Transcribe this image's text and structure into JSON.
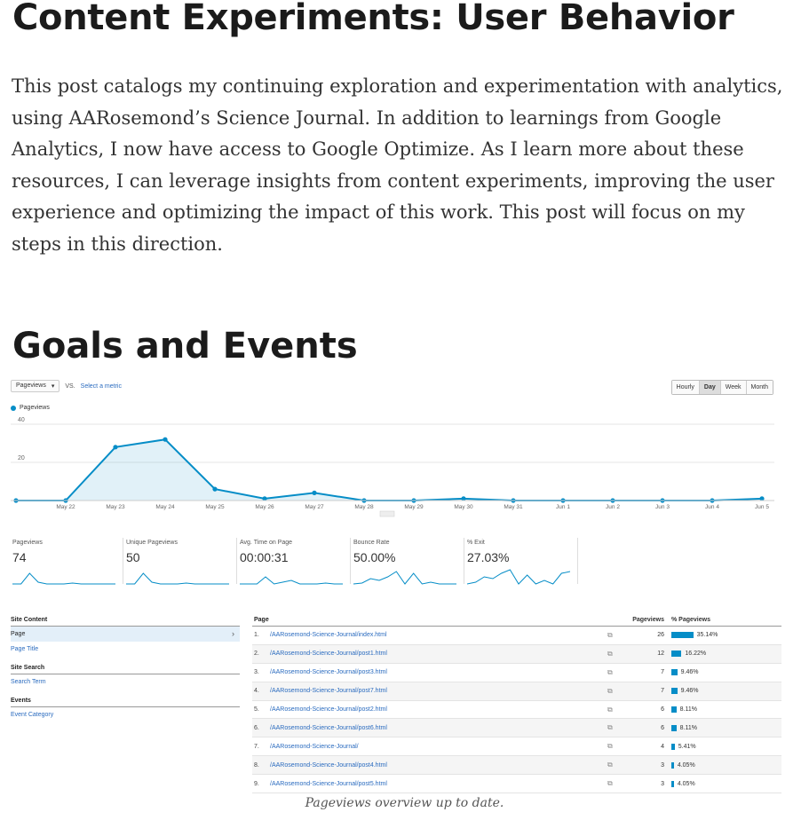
{
  "post": {
    "title": "Content Experiments: User Behavior",
    "intro": "This post catalogs my continuing exploration and experimentation with analytics, using AARosemond’s Science Journal. In addition to learnings from Google Analytics, I now have access to Google Optimize. As I learn more about these resources, I can leverage insights from content experiments, improving the user experience and optimizing the impact of this work. This post will focus on my steps in this direction.",
    "section_heading": "Goals and Events",
    "caption": "Pageviews overview up to date."
  },
  "ga": {
    "metric_select": "Pageviews",
    "vs": "VS.",
    "select_metric": "Select a metric",
    "periods": [
      "Hourly",
      "Day",
      "Week",
      "Month"
    ],
    "active_period": "Day",
    "legend": "Pageviews",
    "accent": "#058dc7",
    "chart_data": {
      "type": "area",
      "title": "",
      "xlabel": "",
      "ylabel": "",
      "x": [
        "",
        "May 22",
        "May 23",
        "May 24",
        "May 25",
        "May 26",
        "May 27",
        "May 28",
        "May 29",
        "May 30",
        "May 31",
        "Jun 1",
        "Jun 2",
        "Jun 3",
        "Jun 4",
        "Jun 5"
      ],
      "series": [
        {
          "name": "Pageviews",
          "values": [
            0,
            0,
            28,
            32,
            6,
            1,
            4,
            0,
            0,
            1,
            0,
            0,
            0,
            0,
            0,
            1
          ]
        }
      ],
      "yticks": [
        "40",
        "20"
      ],
      "ylim": [
        0,
        40
      ],
      "grid": true
    },
    "scorecards": [
      {
        "label": "Pageviews",
        "value": "74"
      },
      {
        "label": "Unique Pageviews",
        "value": "50"
      },
      {
        "label": "Avg. Time on Page",
        "value": "00:00:31"
      },
      {
        "label": "Bounce Rate",
        "value": "50.00%"
      },
      {
        "label": "% Exit",
        "value": "27.03%"
      }
    ],
    "sidebar": {
      "site_content": "Site Content",
      "page": "Page",
      "page_title": "Page Title",
      "site_search": "Site Search",
      "search_term": "Search Term",
      "events": "Events",
      "event_category": "Event Category"
    },
    "table": {
      "headers": {
        "page": "Page",
        "pageviews": "Pageviews",
        "pct": "% Pageviews"
      },
      "rows": [
        {
          "num": "1.",
          "url": "/AARosemond-Science-Journal/index.html",
          "pv": "26",
          "pct": "35.14%",
          "share": 0.3514
        },
        {
          "num": "2.",
          "url": "/AARosemond-Science-Journal/post1.html",
          "pv": "12",
          "pct": "16.22%",
          "share": 0.1622
        },
        {
          "num": "3.",
          "url": "/AARosemond-Science-Journal/post3.html",
          "pv": "7",
          "pct": "9.46%",
          "share": 0.0946
        },
        {
          "num": "4.",
          "url": "/AARosemond-Science-Journal/post7.html",
          "pv": "7",
          "pct": "9.46%",
          "share": 0.0946
        },
        {
          "num": "5.",
          "url": "/AARosemond-Science-Journal/post2.html",
          "pv": "6",
          "pct": "8.11%",
          "share": 0.0811
        },
        {
          "num": "6.",
          "url": "/AARosemond-Science-Journal/post6.html",
          "pv": "6",
          "pct": "8.11%",
          "share": 0.0811
        },
        {
          "num": "7.",
          "url": "/AARosemond-Science-Journal/",
          "pv": "4",
          "pct": "5.41%",
          "share": 0.0541
        },
        {
          "num": "8.",
          "url": "/AARosemond-Science-Journal/post4.html",
          "pv": "3",
          "pct": "4.05%",
          "share": 0.0405
        },
        {
          "num": "9.",
          "url": "/AARosemond-Science-Journal/post5.html",
          "pv": "3",
          "pct": "4.05%",
          "share": 0.0405
        }
      ]
    }
  }
}
